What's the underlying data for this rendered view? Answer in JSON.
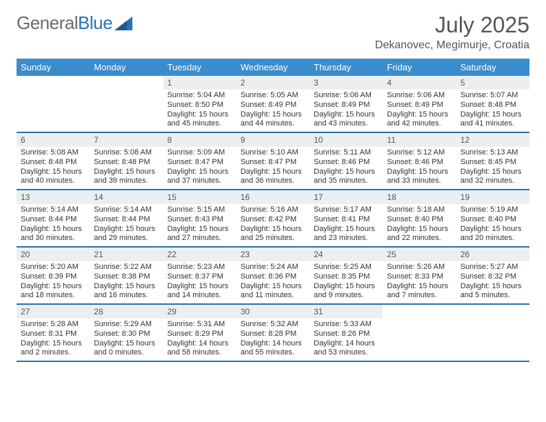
{
  "logo": {
    "text1": "General",
    "text2": "Blue"
  },
  "title": "July 2025",
  "location": "Dekanovec, Megimurje, Croatia",
  "colors": {
    "header_bg": "#3b8ccc",
    "header_text": "#ffffff",
    "row_border": "#2d6fa8",
    "daynum_bg": "#eceff1",
    "text": "#333333",
    "title_text": "#555555",
    "logo_gray": "#6b6b6b",
    "logo_blue": "#2872b8",
    "page_bg": "#ffffff"
  },
  "fonts": {
    "title_size": 32,
    "location_size": 16,
    "dow_size": 13,
    "daynum_size": 12,
    "body_size": 11
  },
  "dow": [
    "Sunday",
    "Monday",
    "Tuesday",
    "Wednesday",
    "Thursday",
    "Friday",
    "Saturday"
  ],
  "weeks": [
    [
      {
        "n": "",
        "lines": []
      },
      {
        "n": "",
        "lines": []
      },
      {
        "n": "1",
        "lines": [
          "Sunrise: 5:04 AM",
          "Sunset: 8:50 PM",
          "Daylight: 15 hours and 45 minutes."
        ]
      },
      {
        "n": "2",
        "lines": [
          "Sunrise: 5:05 AM",
          "Sunset: 8:49 PM",
          "Daylight: 15 hours and 44 minutes."
        ]
      },
      {
        "n": "3",
        "lines": [
          "Sunrise: 5:06 AM",
          "Sunset: 8:49 PM",
          "Daylight: 15 hours and 43 minutes."
        ]
      },
      {
        "n": "4",
        "lines": [
          "Sunrise: 5:06 AM",
          "Sunset: 8:49 PM",
          "Daylight: 15 hours and 42 minutes."
        ]
      },
      {
        "n": "5",
        "lines": [
          "Sunrise: 5:07 AM",
          "Sunset: 8:48 PM",
          "Daylight: 15 hours and 41 minutes."
        ]
      }
    ],
    [
      {
        "n": "6",
        "lines": [
          "Sunrise: 5:08 AM",
          "Sunset: 8:48 PM",
          "Daylight: 15 hours and 40 minutes."
        ]
      },
      {
        "n": "7",
        "lines": [
          "Sunrise: 5:08 AM",
          "Sunset: 8:48 PM",
          "Daylight: 15 hours and 39 minutes."
        ]
      },
      {
        "n": "8",
        "lines": [
          "Sunrise: 5:09 AM",
          "Sunset: 8:47 PM",
          "Daylight: 15 hours and 37 minutes."
        ]
      },
      {
        "n": "9",
        "lines": [
          "Sunrise: 5:10 AM",
          "Sunset: 8:47 PM",
          "Daylight: 15 hours and 36 minutes."
        ]
      },
      {
        "n": "10",
        "lines": [
          "Sunrise: 5:11 AM",
          "Sunset: 8:46 PM",
          "Daylight: 15 hours and 35 minutes."
        ]
      },
      {
        "n": "11",
        "lines": [
          "Sunrise: 5:12 AM",
          "Sunset: 8:46 PM",
          "Daylight: 15 hours and 33 minutes."
        ]
      },
      {
        "n": "12",
        "lines": [
          "Sunrise: 5:13 AM",
          "Sunset: 8:45 PM",
          "Daylight: 15 hours and 32 minutes."
        ]
      }
    ],
    [
      {
        "n": "13",
        "lines": [
          "Sunrise: 5:14 AM",
          "Sunset: 8:44 PM",
          "Daylight: 15 hours and 30 minutes."
        ]
      },
      {
        "n": "14",
        "lines": [
          "Sunrise: 5:14 AM",
          "Sunset: 8:44 PM",
          "Daylight: 15 hours and 29 minutes."
        ]
      },
      {
        "n": "15",
        "lines": [
          "Sunrise: 5:15 AM",
          "Sunset: 8:43 PM",
          "Daylight: 15 hours and 27 minutes."
        ]
      },
      {
        "n": "16",
        "lines": [
          "Sunrise: 5:16 AM",
          "Sunset: 8:42 PM",
          "Daylight: 15 hours and 25 minutes."
        ]
      },
      {
        "n": "17",
        "lines": [
          "Sunrise: 5:17 AM",
          "Sunset: 8:41 PM",
          "Daylight: 15 hours and 23 minutes."
        ]
      },
      {
        "n": "18",
        "lines": [
          "Sunrise: 5:18 AM",
          "Sunset: 8:40 PM",
          "Daylight: 15 hours and 22 minutes."
        ]
      },
      {
        "n": "19",
        "lines": [
          "Sunrise: 5:19 AM",
          "Sunset: 8:40 PM",
          "Daylight: 15 hours and 20 minutes."
        ]
      }
    ],
    [
      {
        "n": "20",
        "lines": [
          "Sunrise: 5:20 AM",
          "Sunset: 8:39 PM",
          "Daylight: 15 hours and 18 minutes."
        ]
      },
      {
        "n": "21",
        "lines": [
          "Sunrise: 5:22 AM",
          "Sunset: 8:38 PM",
          "Daylight: 15 hours and 16 minutes."
        ]
      },
      {
        "n": "22",
        "lines": [
          "Sunrise: 5:23 AM",
          "Sunset: 8:37 PM",
          "Daylight: 15 hours and 14 minutes."
        ]
      },
      {
        "n": "23",
        "lines": [
          "Sunrise: 5:24 AM",
          "Sunset: 8:36 PM",
          "Daylight: 15 hours and 11 minutes."
        ]
      },
      {
        "n": "24",
        "lines": [
          "Sunrise: 5:25 AM",
          "Sunset: 8:35 PM",
          "Daylight: 15 hours and 9 minutes."
        ]
      },
      {
        "n": "25",
        "lines": [
          "Sunrise: 5:26 AM",
          "Sunset: 8:33 PM",
          "Daylight: 15 hours and 7 minutes."
        ]
      },
      {
        "n": "26",
        "lines": [
          "Sunrise: 5:27 AM",
          "Sunset: 8:32 PM",
          "Daylight: 15 hours and 5 minutes."
        ]
      }
    ],
    [
      {
        "n": "27",
        "lines": [
          "Sunrise: 5:28 AM",
          "Sunset: 8:31 PM",
          "Daylight: 15 hours and 2 minutes."
        ]
      },
      {
        "n": "28",
        "lines": [
          "Sunrise: 5:29 AM",
          "Sunset: 8:30 PM",
          "Daylight: 15 hours and 0 minutes."
        ]
      },
      {
        "n": "29",
        "lines": [
          "Sunrise: 5:31 AM",
          "Sunset: 8:29 PM",
          "Daylight: 14 hours and 58 minutes."
        ]
      },
      {
        "n": "30",
        "lines": [
          "Sunrise: 5:32 AM",
          "Sunset: 8:28 PM",
          "Daylight: 14 hours and 55 minutes."
        ]
      },
      {
        "n": "31",
        "lines": [
          "Sunrise: 5:33 AM",
          "Sunset: 8:26 PM",
          "Daylight: 14 hours and 53 minutes."
        ]
      },
      {
        "n": "",
        "lines": []
      },
      {
        "n": "",
        "lines": []
      }
    ]
  ]
}
